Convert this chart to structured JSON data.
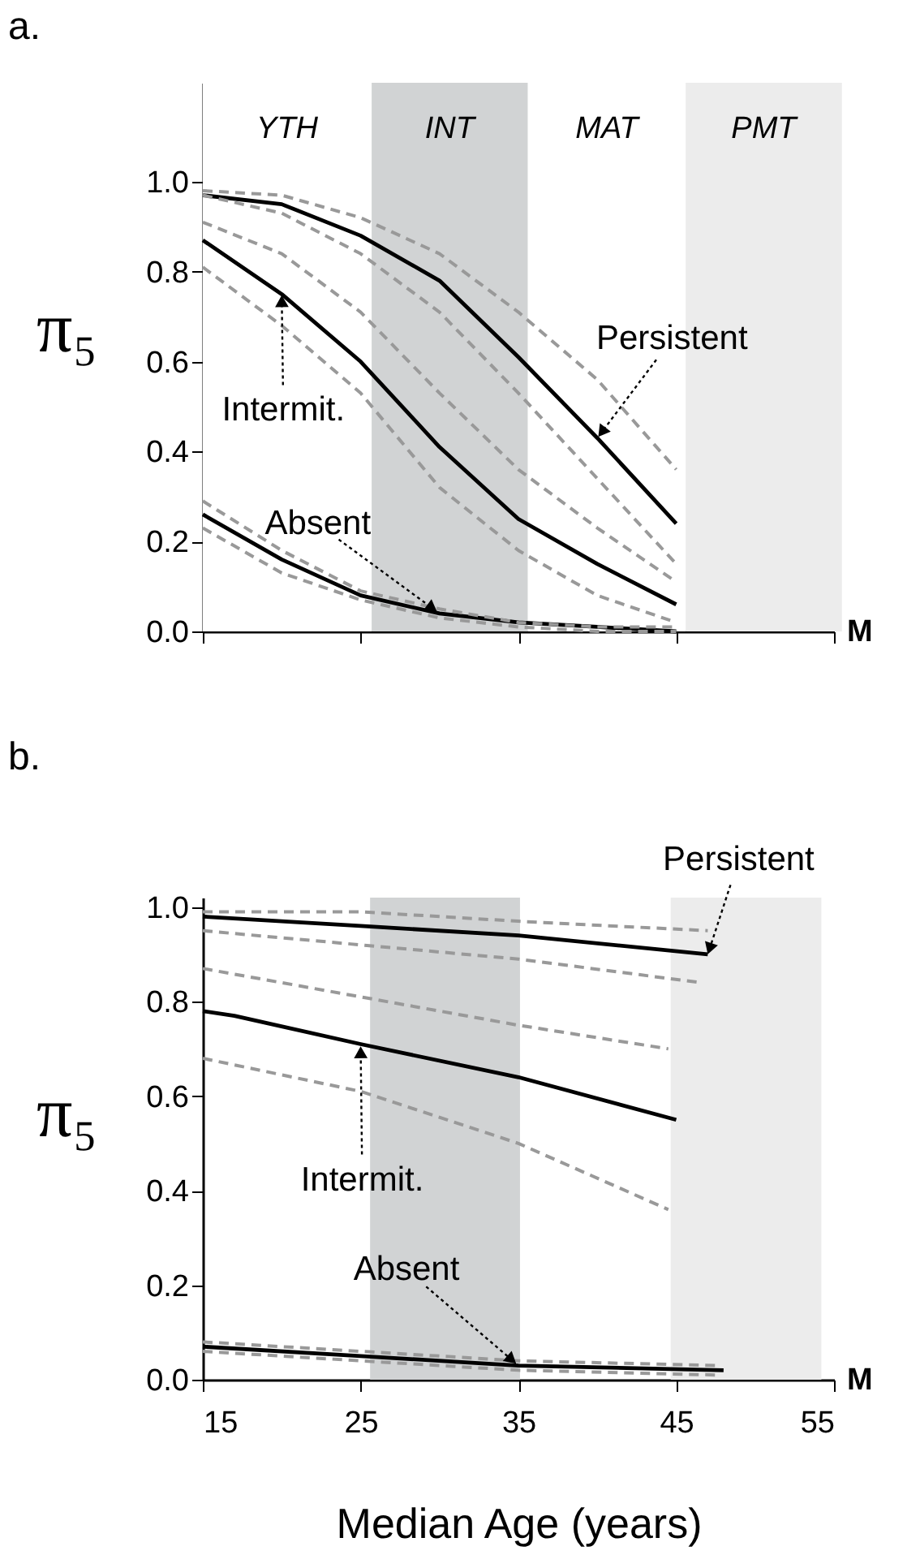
{
  "chart_data": [
    {
      "type": "line",
      "title": "a.",
      "ylabel": "π₅",
      "xlim": [
        15,
        55
      ],
      "ylim": [
        0,
        1.22
      ],
      "xticks": [
        15,
        25,
        35,
        45,
        55
      ],
      "yticks": [
        {
          "value": 0,
          "label": "0.0"
        },
        {
          "value": 0.2,
          "label": "0.2"
        },
        {
          "value": 0.4,
          "label": "0.4"
        },
        {
          "value": 0.6,
          "label": "0.6"
        },
        {
          "value": 0.8,
          "label": "0.8"
        },
        {
          "value": 1,
          "label": "1.0"
        }
      ],
      "tick_labels": "y",
      "grid": false,
      "x": [
        15,
        20,
        25,
        30,
        35,
        40,
        45
      ],
      "series": [
        {
          "color": "#000000",
          "line_style": "solid",
          "values": [
            0.97,
            0.95,
            0.88,
            0.78,
            0.61,
            0.43,
            0.24
          ]
        },
        {
          "color": "#999999",
          "line_style": "dashed",
          "values": [
            0.98,
            0.97,
            0.92,
            0.84,
            0.71,
            0.56,
            0.36
          ]
        },
        {
          "color": "#999999",
          "line_style": "dashed",
          "values": [
            0.97,
            0.93,
            0.84,
            0.71,
            0.53,
            0.34,
            0.15
          ]
        },
        {
          "color": "#000000",
          "line_style": "solid",
          "values": [
            0.87,
            0.75,
            0.6,
            0.41,
            0.25,
            0.15,
            0.06
          ]
        },
        {
          "color": "#999999",
          "line_style": "dashed",
          "values": [
            0.91,
            0.84,
            0.71,
            0.53,
            0.36,
            0.23,
            0.11
          ]
        },
        {
          "color": "#999999",
          "line_style": "dashed",
          "values": [
            0.81,
            0.68,
            0.53,
            0.32,
            0.18,
            0.08,
            0.02
          ]
        },
        {
          "color": "#000000",
          "line_style": "solid",
          "values": [
            0.26,
            0.16,
            0.08,
            0.04,
            0.02,
            0.01,
            0.0
          ]
        },
        {
          "color": "#999999",
          "line_style": "dashed",
          "values": [
            0.29,
            0.18,
            0.09,
            0.05,
            0.02,
            0.01,
            0.01
          ]
        },
        {
          "color": "#999999",
          "line_style": "dashed",
          "values": [
            0.23,
            0.13,
            0.07,
            0.03,
            0.01,
            0.0,
            0.0
          ]
        }
      ],
      "bands": [
        {
          "axis": "x",
          "from": 15,
          "to": 25.7,
          "label": "YTH",
          "color": "#ffffff"
        },
        {
          "axis": "x",
          "from": 25.7,
          "to": 35.6,
          "label": "INT",
          "color": "#d1d3d4"
        },
        {
          "axis": "x",
          "from": 35.6,
          "to": 45.6,
          "label": "MAT",
          "color": "#ffffff"
        },
        {
          "axis": "x",
          "from": 45.6,
          "to": 55.5,
          "label": "PMT",
          "color": "#ececec"
        }
      ],
      "annotations": [
        {
          "text": "Persistent",
          "x": 40,
          "y": 0.43
        },
        {
          "text": "Intermit.",
          "x": 20,
          "y": 0.75
        },
        {
          "text": "Absent",
          "x": 30,
          "y": 0.04
        },
        "M"
      ]
    },
    {
      "type": "line",
      "title": "b.",
      "ylabel": "π₅",
      "xlabel": "Median Age (years)",
      "xlim": [
        15,
        55
      ],
      "ylim": [
        0,
        1.02
      ],
      "xticks": [
        15,
        25,
        35,
        45,
        55
      ],
      "yticks": [
        {
          "value": 0,
          "label": "0.0"
        },
        {
          "value": 0.2,
          "label": "0.2"
        },
        {
          "value": 0.4,
          "label": "0.4"
        },
        {
          "value": 0.6,
          "label": "0.6"
        },
        {
          "value": 0.8,
          "label": "0.8"
        },
        {
          "value": 1,
          "label": "1.0"
        }
      ],
      "grid": false,
      "series": [
        {
          "color": "#000000",
          "line_style": "solid",
          "x": [
            15,
            25,
            35,
            47
          ],
          "values": [
            0.98,
            0.96,
            0.94,
            0.9
          ]
        },
        {
          "color": "#999999",
          "line_style": "dashed",
          "x": [
            15,
            25,
            35,
            47
          ],
          "values": [
            0.99,
            0.99,
            0.97,
            0.95
          ]
        },
        {
          "color": "#999999",
          "line_style": "dashed",
          "x": [
            15,
            25,
            35,
            46.6
          ],
          "values": [
            0.95,
            0.92,
            0.89,
            0.84
          ]
        },
        {
          "color": "#000000",
          "line_style": "solid",
          "x": [
            15,
            17,
            25,
            35,
            45
          ],
          "values": [
            0.78,
            0.77,
            0.71,
            0.64,
            0.55
          ]
        },
        {
          "color": "#999999",
          "line_style": "dashed",
          "x": [
            15,
            25,
            35,
            44.5
          ],
          "values": [
            0.87,
            0.81,
            0.75,
            0.7
          ]
        },
        {
          "color": "#999999",
          "line_style": "dashed",
          "x": [
            15,
            25,
            35,
            44.5
          ],
          "values": [
            0.68,
            0.61,
            0.5,
            0.36
          ]
        },
        {
          "color": "#000000",
          "line_style": "solid",
          "x": [
            15,
            25,
            35,
            48
          ],
          "values": [
            0.07,
            0.05,
            0.03,
            0.02
          ]
        },
        {
          "color": "#999999",
          "line_style": "dashed",
          "x": [
            15,
            25,
            35,
            47.5
          ],
          "values": [
            0.08,
            0.06,
            0.04,
            0.03
          ]
        },
        {
          "color": "#999999",
          "line_style": "dashed",
          "x": [
            15,
            25,
            35,
            47.5
          ],
          "values": [
            0.06,
            0.04,
            0.02,
            0.01
          ]
        }
      ],
      "bands": [
        {
          "axis": "x",
          "from": 25.6,
          "to": 35.1,
          "color": "#d1d3d4"
        },
        {
          "axis": "x",
          "from": 44.65,
          "to": 54.2,
          "color": "#ececec"
        }
      ],
      "annotations": [
        {
          "text": "Persistent",
          "x": 47,
          "y": 0.9
        },
        {
          "text": "Intermit.",
          "x": 25,
          "y": 0.71
        },
        {
          "text": "Absent",
          "x": 35,
          "y": 0.03
        },
        "M"
      ]
    }
  ]
}
